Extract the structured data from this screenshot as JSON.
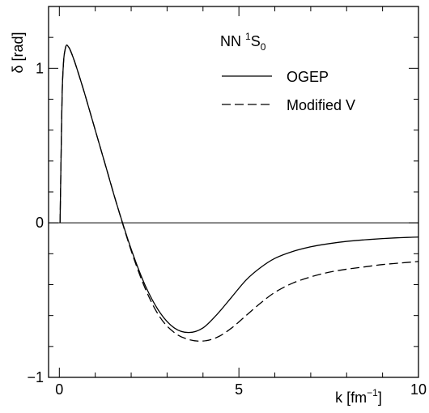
{
  "chart_data": {
    "type": "line",
    "xlabel": {
      "base": "k [fm",
      "sup": "−1",
      "close": "]"
    },
    "ylabel": "δ [rad]",
    "xlim": [
      -0.3,
      10
    ],
    "ylim": [
      -1,
      1.4
    ],
    "x_ticks": [
      {
        "value": 0,
        "label": "0"
      },
      {
        "value": 5,
        "label": "5"
      },
      {
        "value": 10,
        "label": "10"
      }
    ],
    "y_ticks": [
      {
        "value": -1,
        "label": "−1"
      },
      {
        "value": 0,
        "label": "0"
      },
      {
        "value": 1,
        "label": "1"
      }
    ],
    "legend": {
      "title": {
        "base": "NN ",
        "sup": "1",
        "main": "S",
        "sub": "0"
      },
      "placement": "top-right"
    },
    "series": [
      {
        "name": "OGEP",
        "style": "solid",
        "x": [
          0.02,
          0.05,
          0.08,
          0.12,
          0.16,
          0.2,
          0.25,
          0.3,
          0.4,
          0.5,
          0.7,
          1.0,
          1.3,
          1.6,
          2.0,
          2.4,
          2.8,
          3.2,
          3.6,
          4.0,
          4.4,
          4.8,
          5.2,
          5.6,
          6.0,
          6.5,
          7.0,
          7.5,
          8.0,
          8.5,
          9.0,
          9.5,
          10.0
        ],
        "y": [
          0.0,
          0.45,
          0.85,
          1.05,
          1.12,
          1.15,
          1.14,
          1.12,
          1.06,
          0.99,
          0.84,
          0.6,
          0.36,
          0.12,
          -0.17,
          -0.41,
          -0.58,
          -0.68,
          -0.71,
          -0.68,
          -0.59,
          -0.48,
          -0.37,
          -0.29,
          -0.23,
          -0.185,
          -0.155,
          -0.135,
          -0.12,
          -0.11,
          -0.102,
          -0.096,
          -0.092
        ]
      },
      {
        "name": "Modified V",
        "style": "dashed",
        "x": [
          0.02,
          0.05,
          0.08,
          0.12,
          0.16,
          0.2,
          0.25,
          0.3,
          0.4,
          0.5,
          0.7,
          1.0,
          1.3,
          1.6,
          2.0,
          2.4,
          2.8,
          3.2,
          3.6,
          4.0,
          4.4,
          4.8,
          5.2,
          5.6,
          6.0,
          6.5,
          7.0,
          7.5,
          8.0,
          8.5,
          9.0,
          9.5,
          10.0
        ],
        "y": [
          0.0,
          0.45,
          0.85,
          1.05,
          1.12,
          1.15,
          1.14,
          1.12,
          1.06,
          0.99,
          0.84,
          0.6,
          0.36,
          0.12,
          -0.18,
          -0.43,
          -0.61,
          -0.71,
          -0.755,
          -0.765,
          -0.74,
          -0.68,
          -0.6,
          -0.52,
          -0.45,
          -0.39,
          -0.35,
          -0.32,
          -0.3,
          -0.285,
          -0.27,
          -0.26,
          -0.25
        ]
      }
    ]
  }
}
